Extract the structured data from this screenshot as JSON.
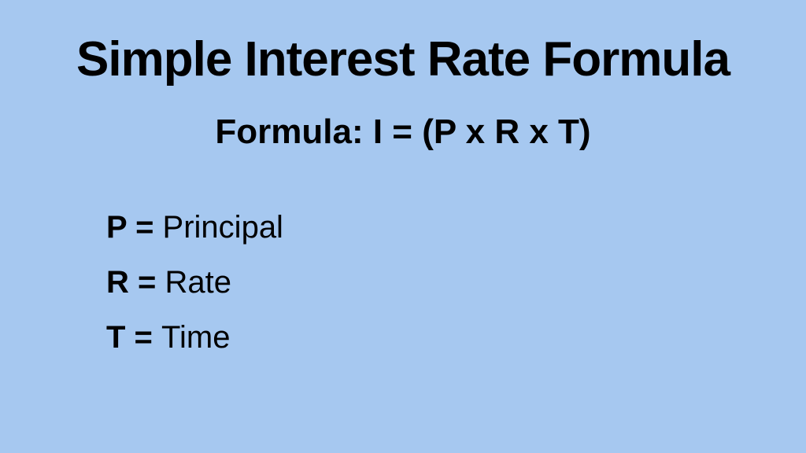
{
  "type": "infographic",
  "background_color": "#a6c8f0",
  "text_color": "#000000",
  "font_family": "Arial, Helvetica, sans-serif",
  "title": {
    "text": "Simple Interest Rate Formula",
    "fontsize": 62,
    "fontweight": "bold",
    "align": "center"
  },
  "formula": {
    "text": "Formula: I = (P x R x T)",
    "fontsize": 44,
    "fontweight": "bold",
    "align": "center"
  },
  "definitions": {
    "fontsize": 40,
    "left_padding": 135,
    "items": [
      {
        "symbol": "P = ",
        "meaning": "Principal"
      },
      {
        "symbol": "R = ",
        "meaning": "Rate"
      },
      {
        "symbol": "T = ",
        "meaning": "Time"
      }
    ]
  }
}
